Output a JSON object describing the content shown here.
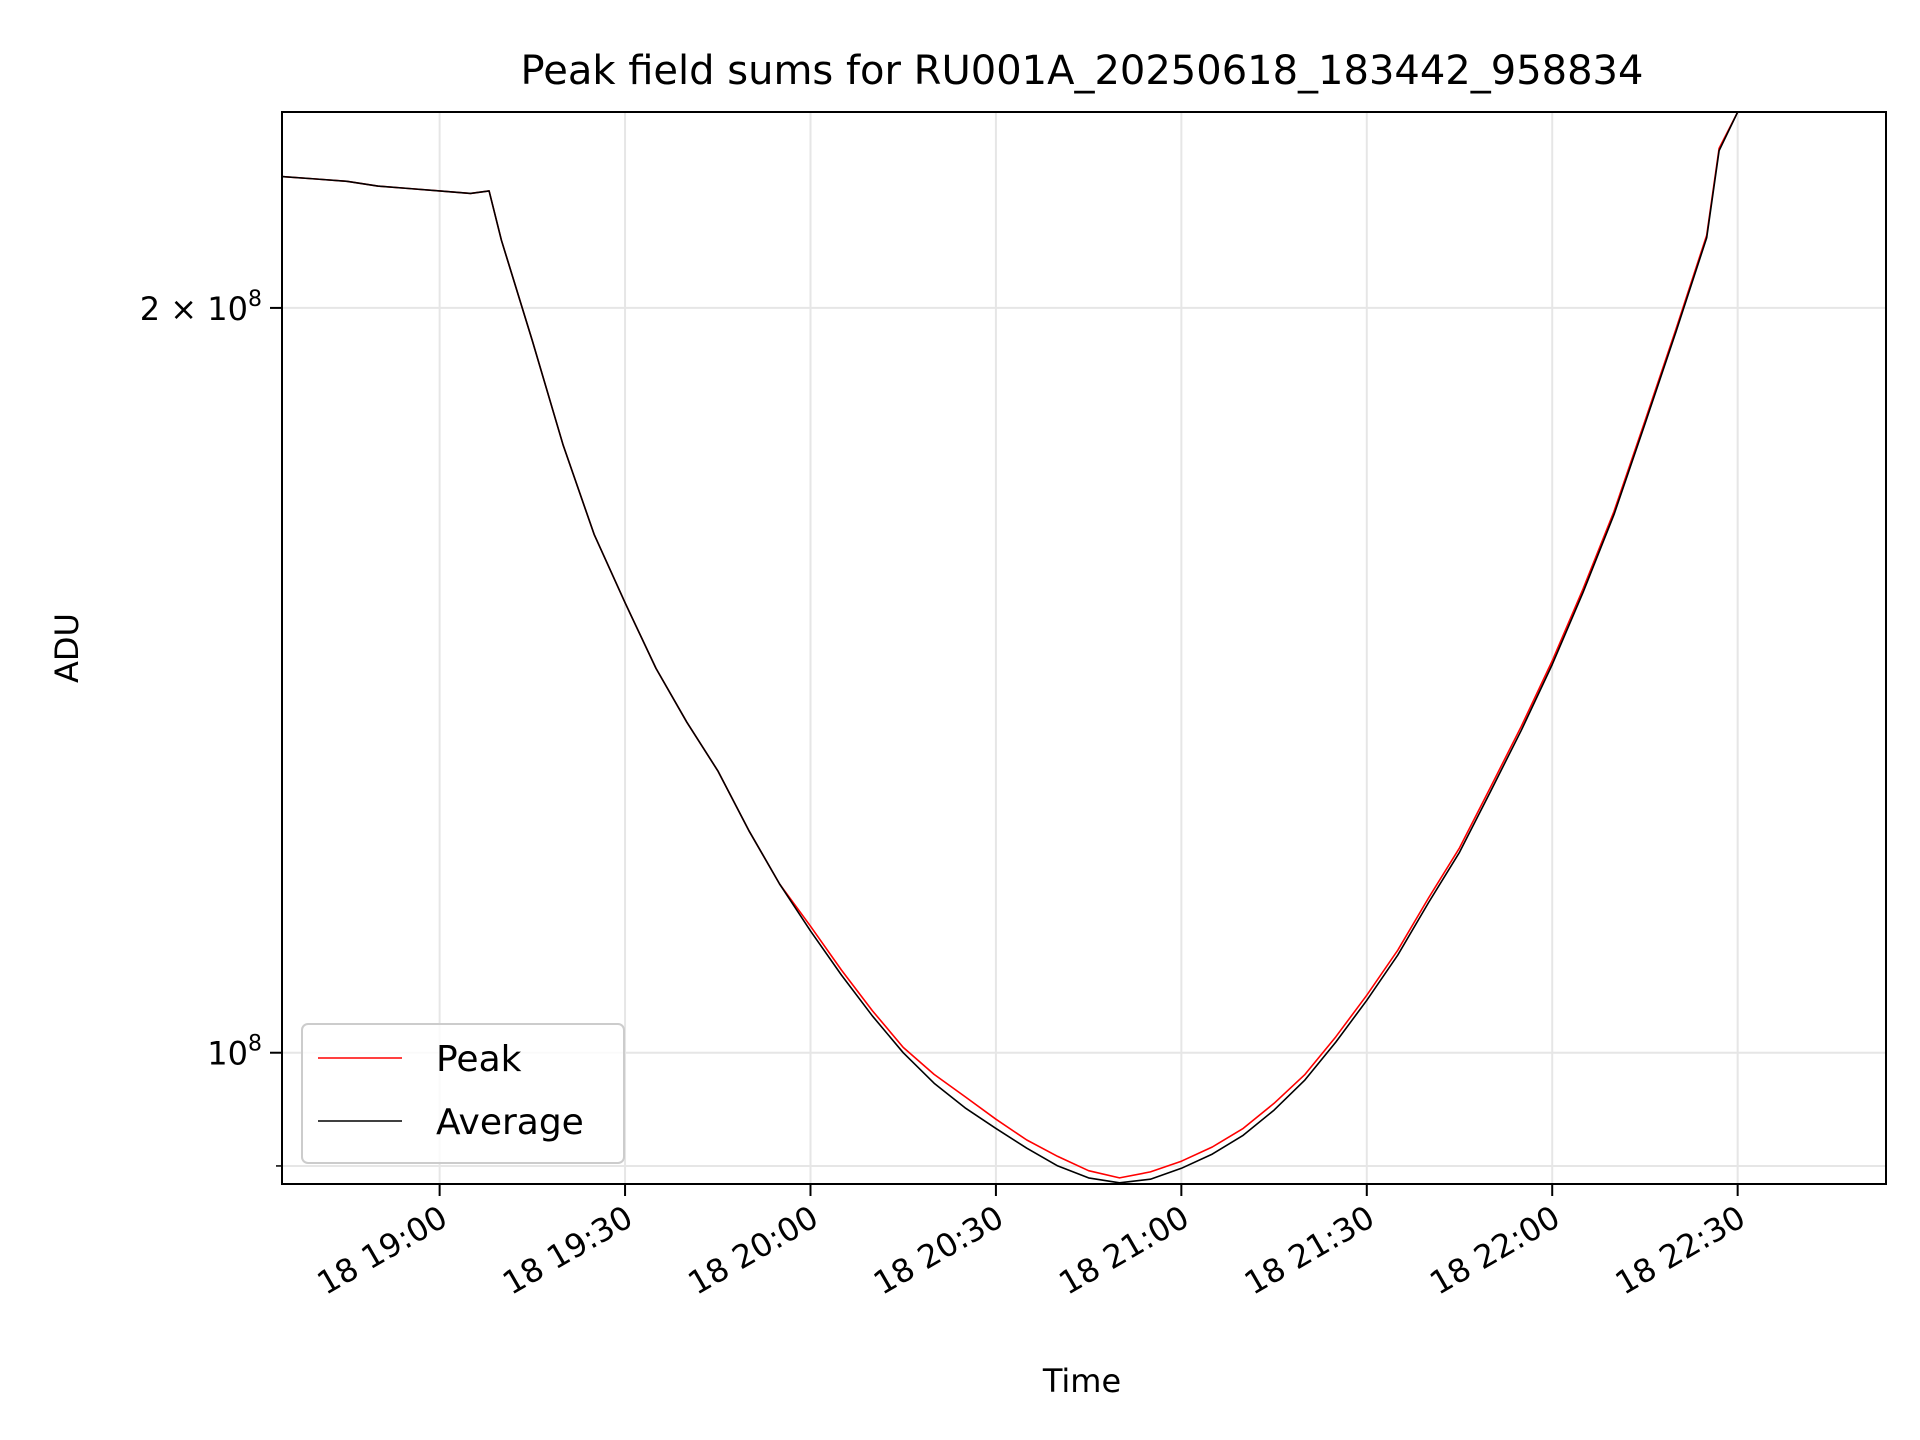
{
  "chart_data": {
    "type": "line",
    "title": "Peak field sums for RU001A_20250618_183442_958834",
    "xlabel": "Time",
    "ylabel": "ADU",
    "yscale": "log",
    "grid": true,
    "legend_location": "lower-left",
    "xlim": [
      "2025-06-18T18:34:30",
      "2025-06-18T22:54:00"
    ],
    "ylim": [
      88500000,
      240000000
    ],
    "x_ticks": [
      {
        "value": "2025-06-18T19:00",
        "label": "18 19:00"
      },
      {
        "value": "2025-06-18T19:30",
        "label": "18 19:30"
      },
      {
        "value": "2025-06-18T20:00",
        "label": "18 20:00"
      },
      {
        "value": "2025-06-18T20:30",
        "label": "18 20:30"
      },
      {
        "value": "2025-06-18T21:00",
        "label": "18 21:00"
      },
      {
        "value": "2025-06-18T21:30",
        "label": "18 21:30"
      },
      {
        "value": "2025-06-18T22:00",
        "label": "18 22:00"
      },
      {
        "value": "2025-06-18T22:30",
        "label": "18 22:30"
      }
    ],
    "y_ticks": [
      {
        "value": 100000000,
        "base": "10",
        "exp": "8",
        "coef": ""
      },
      {
        "value": 200000000,
        "base": "10",
        "exp": "8",
        "coef": "2 × "
      }
    ],
    "y_minor_ticks": [
      90000000
    ],
    "x": [
      "2025-06-18T18:34:30",
      "2025-06-18T18:40",
      "2025-06-18T18:45",
      "2025-06-18T18:50",
      "2025-06-18T18:55",
      "2025-06-18T19:00",
      "2025-06-18T19:05",
      "2025-06-18T19:08",
      "2025-06-18T19:10",
      "2025-06-18T19:15",
      "2025-06-18T19:20",
      "2025-06-18T19:25",
      "2025-06-18T19:30",
      "2025-06-18T19:35",
      "2025-06-18T19:40",
      "2025-06-18T19:45",
      "2025-06-18T19:50",
      "2025-06-18T19:55",
      "2025-06-18T20:00",
      "2025-06-18T20:05",
      "2025-06-18T20:10",
      "2025-06-18T20:15",
      "2025-06-18T20:20",
      "2025-06-18T20:25",
      "2025-06-18T20:30",
      "2025-06-18T20:35",
      "2025-06-18T20:40",
      "2025-06-18T20:45",
      "2025-06-18T20:50",
      "2025-06-18T20:55",
      "2025-06-18T21:00",
      "2025-06-18T21:05",
      "2025-06-18T21:10",
      "2025-06-18T21:15",
      "2025-06-18T21:20",
      "2025-06-18T21:25",
      "2025-06-18T21:30",
      "2025-06-18T21:35",
      "2025-06-18T21:40",
      "2025-06-18T21:45",
      "2025-06-18T21:50",
      "2025-06-18T21:55",
      "2025-06-18T22:00",
      "2025-06-18T22:05",
      "2025-06-18T22:10",
      "2025-06-18T22:15",
      "2025-06-18T22:20",
      "2025-06-18T22:25",
      "2025-06-18T22:27",
      "2025-06-18T22:30"
    ],
    "series": [
      {
        "name": "Peak",
        "color": "#ff0000",
        "values": [
          226000000,
          225500000,
          225000000,
          224000000,
          223500000,
          223000000,
          222500000,
          223000000,
          213000000,
          194000000,
          176000000,
          162000000,
          152000000,
          143000000,
          136000000,
          130000000,
          123000000,
          117000000,
          112500000,
          108000000,
          104000000,
          100500000,
          98000000,
          96000000,
          94000000,
          92200000,
          90800000,
          89600000,
          89000000,
          89500000,
          90400000,
          91600000,
          93200000,
          95400000,
          98000000,
          101500000,
          105500000,
          110000000,
          115500000,
          121000000,
          128000000,
          135500000,
          144000000,
          154000000,
          165500000,
          180000000,
          196000000,
          214000000,
          232000000,
          240000000
        ]
      },
      {
        "name": "Average",
        "color": "#000000",
        "values": [
          226000000,
          225500000,
          225000000,
          224000000,
          223500000,
          223000000,
          222500000,
          223000000,
          213000000,
          194000000,
          176000000,
          162000000,
          152000000,
          143000000,
          136000000,
          130000000,
          123000000,
          117000000,
          112000000,
          107500000,
          103500000,
          100000000,
          97200000,
          95000000,
          93200000,
          91500000,
          90000000,
          89000000,
          88600000,
          88900000,
          89800000,
          91000000,
          92600000,
          94800000,
          97500000,
          101000000,
          105000000,
          109500000,
          115000000,
          120500000,
          127500000,
          135000000,
          143500000,
          153500000,
          165000000,
          179500000,
          195500000,
          213500000,
          231500000,
          240000000
        ]
      }
    ]
  }
}
